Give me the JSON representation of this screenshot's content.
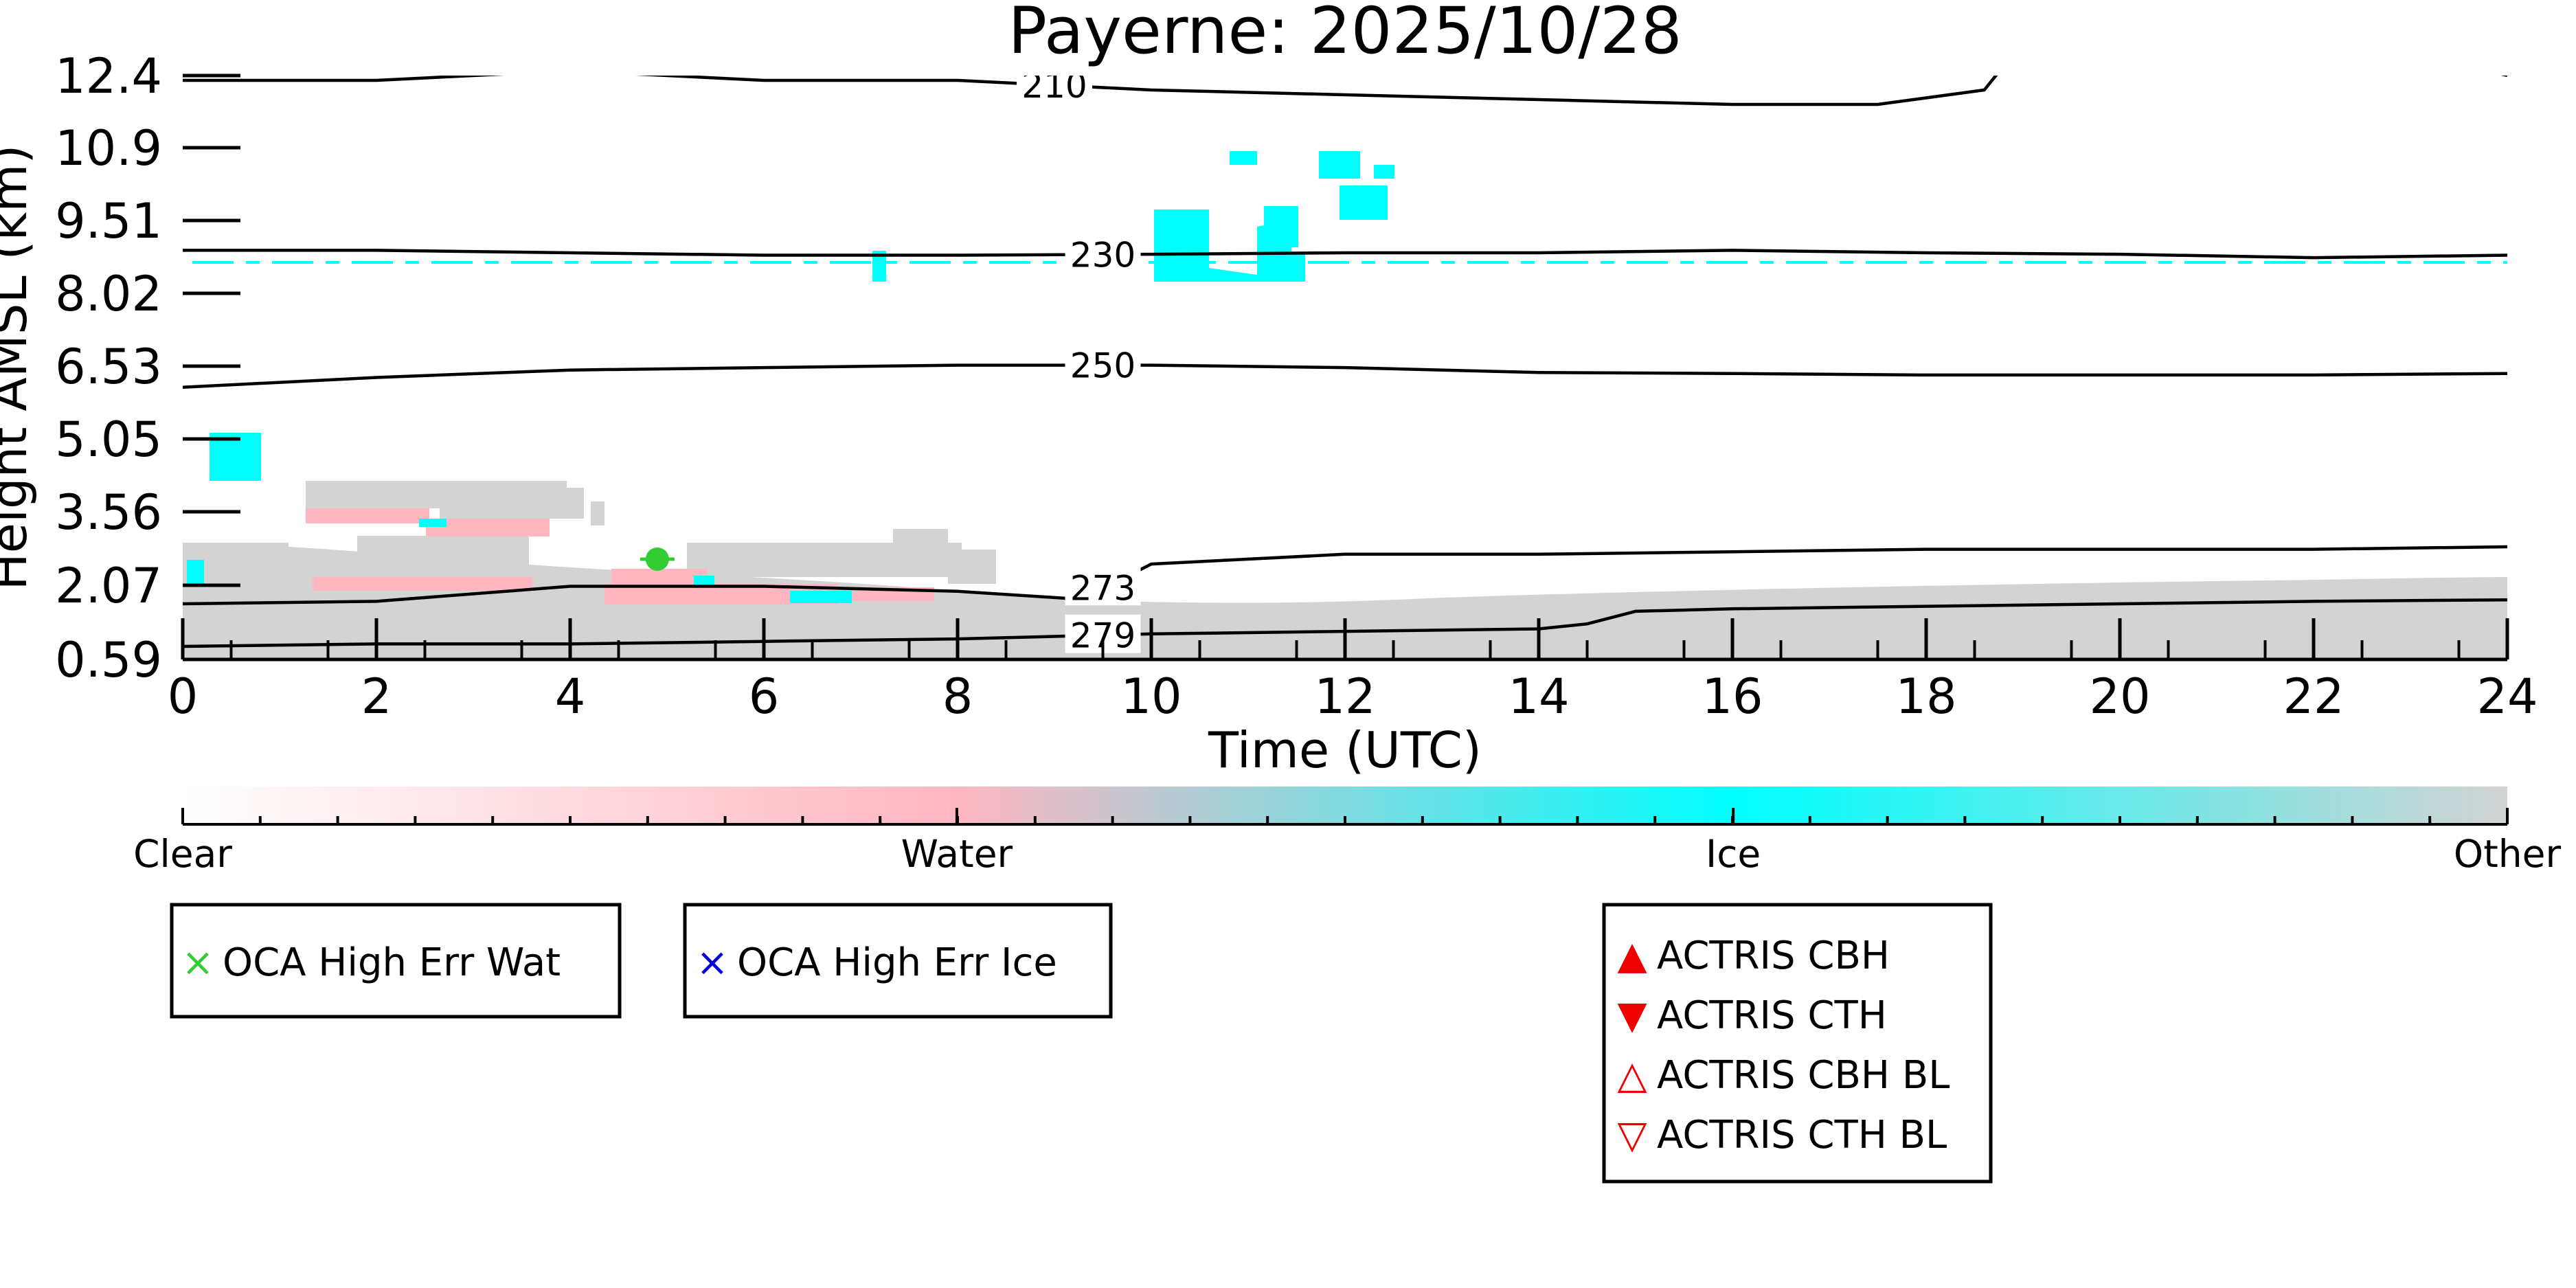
{
  "chart_data": {
    "type": "heatmap",
    "title": "Payerne: 2025/10/28",
    "xlabel": "Time (UTC)",
    "ylabel": "Height AMSL (km)",
    "xlim": [
      0,
      24
    ],
    "ylim": [
      0.59,
      12.4
    ],
    "x_ticks": [
      0,
      2,
      4,
      6,
      8,
      10,
      12,
      14,
      16,
      18,
      20,
      22,
      24
    ],
    "y_ticks": [
      0.59,
      2.07,
      3.56,
      5.05,
      6.53,
      8.02,
      9.51,
      10.9,
      12.4
    ],
    "y_tick_labels": [
      "0.59",
      "2.07",
      "3.56",
      "5.05",
      "6.53",
      "8.02",
      "9.51",
      "10.9",
      "12.4"
    ],
    "classes": [
      "Clear",
      "Water",
      "Ice",
      "Other"
    ],
    "class_colors": {
      "Clear": "#ffffff",
      "Water": "#ffb6c1",
      "Ice": "#00ffff",
      "Other": "#d3d3d3"
    },
    "colorbar": {
      "labels": [
        "Clear",
        "Water",
        "Ice",
        "Other"
      ],
      "positions": [
        0,
        0.333,
        0.667,
        1.0
      ],
      "stops": [
        {
          "pos": 0.0,
          "color": "#ffffff"
        },
        {
          "pos": 0.333,
          "color": "#ffb6c1"
        },
        {
          "pos": 0.667,
          "color": "#00ffff"
        },
        {
          "pos": 1.0,
          "color": "#d3d3d3"
        }
      ]
    },
    "contours": [
      {
        "label": "210",
        "label_x": 9.0,
        "points": [
          [
            0,
            12.3
          ],
          [
            2,
            12.3
          ],
          [
            4,
            12.5
          ],
          [
            6,
            12.3
          ],
          [
            8,
            12.3
          ],
          [
            9,
            12.2
          ],
          [
            10,
            12.1
          ],
          [
            12,
            12.0
          ],
          [
            14,
            11.9
          ],
          [
            16,
            11.8
          ],
          [
            17.5,
            11.8
          ],
          [
            18.6,
            12.1
          ],
          [
            18.8,
            12.6
          ]
        ],
        "points2": [
          [
            23.6,
            12.6
          ],
          [
            24,
            12.4
          ]
        ]
      },
      {
        "label": "230",
        "label_x": 9.5,
        "points": [
          [
            0,
            8.9
          ],
          [
            2,
            8.9
          ],
          [
            4,
            8.85
          ],
          [
            6,
            8.8
          ],
          [
            8,
            8.8
          ],
          [
            10,
            8.82
          ],
          [
            12,
            8.85
          ],
          [
            14,
            8.85
          ],
          [
            16,
            8.9
          ],
          [
            18,
            8.85
          ],
          [
            20,
            8.82
          ],
          [
            22,
            8.75
          ],
          [
            24,
            8.8
          ]
        ]
      },
      {
        "label": "250",
        "label_x": 9.5,
        "points": [
          [
            0,
            6.1
          ],
          [
            2,
            6.3
          ],
          [
            4,
            6.45
          ],
          [
            6,
            6.5
          ],
          [
            8,
            6.55
          ],
          [
            10,
            6.55
          ],
          [
            12,
            6.5
          ],
          [
            14,
            6.4
          ],
          [
            16,
            6.38
          ],
          [
            18,
            6.35
          ],
          [
            20,
            6.35
          ],
          [
            22,
            6.35
          ],
          [
            24,
            6.38
          ]
        ]
      },
      {
        "label": "273",
        "label_x": 9.5,
        "points": [
          [
            0,
            1.7
          ],
          [
            2,
            1.75
          ],
          [
            4,
            2.05
          ],
          [
            6,
            2.05
          ],
          [
            8,
            1.95
          ],
          [
            9.2,
            1.8
          ],
          [
            9.6,
            2.1
          ],
          [
            10,
            2.5
          ],
          [
            12,
            2.7
          ],
          [
            14,
            2.7
          ],
          [
            16,
            2.75
          ],
          [
            18,
            2.8
          ],
          [
            20,
            2.8
          ],
          [
            22,
            2.8
          ],
          [
            24,
            2.85
          ]
        ]
      },
      {
        "label": "279",
        "label_x": 9.5,
        "points": [
          [
            0,
            0.85
          ],
          [
            2,
            0.9
          ],
          [
            4,
            0.9
          ],
          [
            6,
            0.95
          ],
          [
            8,
            1.0
          ],
          [
            10,
            1.1
          ],
          [
            12,
            1.15
          ],
          [
            14,
            1.2
          ],
          [
            14.5,
            1.3
          ],
          [
            15,
            1.55
          ],
          [
            16,
            1.6
          ],
          [
            18,
            1.65
          ],
          [
            20,
            1.7
          ],
          [
            22,
            1.75
          ],
          [
            24,
            1.78
          ]
        ]
      }
    ],
    "oca_markers": [
      {
        "series": "OCA High Err Wat",
        "time": 4.9,
        "height": 2.6,
        "color": "#33cc33"
      }
    ]
  },
  "legends": [
    {
      "name": "oca-water",
      "items": [
        {
          "label": "OCA High Err Wat",
          "symbol": "×",
          "color": "#33cc33"
        }
      ]
    },
    {
      "name": "oca-ice",
      "items": [
        {
          "label": "OCA High Err Ice",
          "symbol": "×",
          "color": "#0000dd"
        }
      ]
    },
    {
      "name": "actris",
      "items": [
        {
          "label": "ACTRIS CBH",
          "symbol": "▲",
          "color": "#ee0000"
        },
        {
          "label": "ACTRIS CTH",
          "symbol": "▼",
          "color": "#ee0000"
        },
        {
          "label": "ACTRIS CBH BL",
          "symbol": "△",
          "color": "#ee0000"
        },
        {
          "label": "ACTRIS CTH BL",
          "symbol": "▽",
          "color": "#ee0000"
        }
      ]
    }
  ]
}
